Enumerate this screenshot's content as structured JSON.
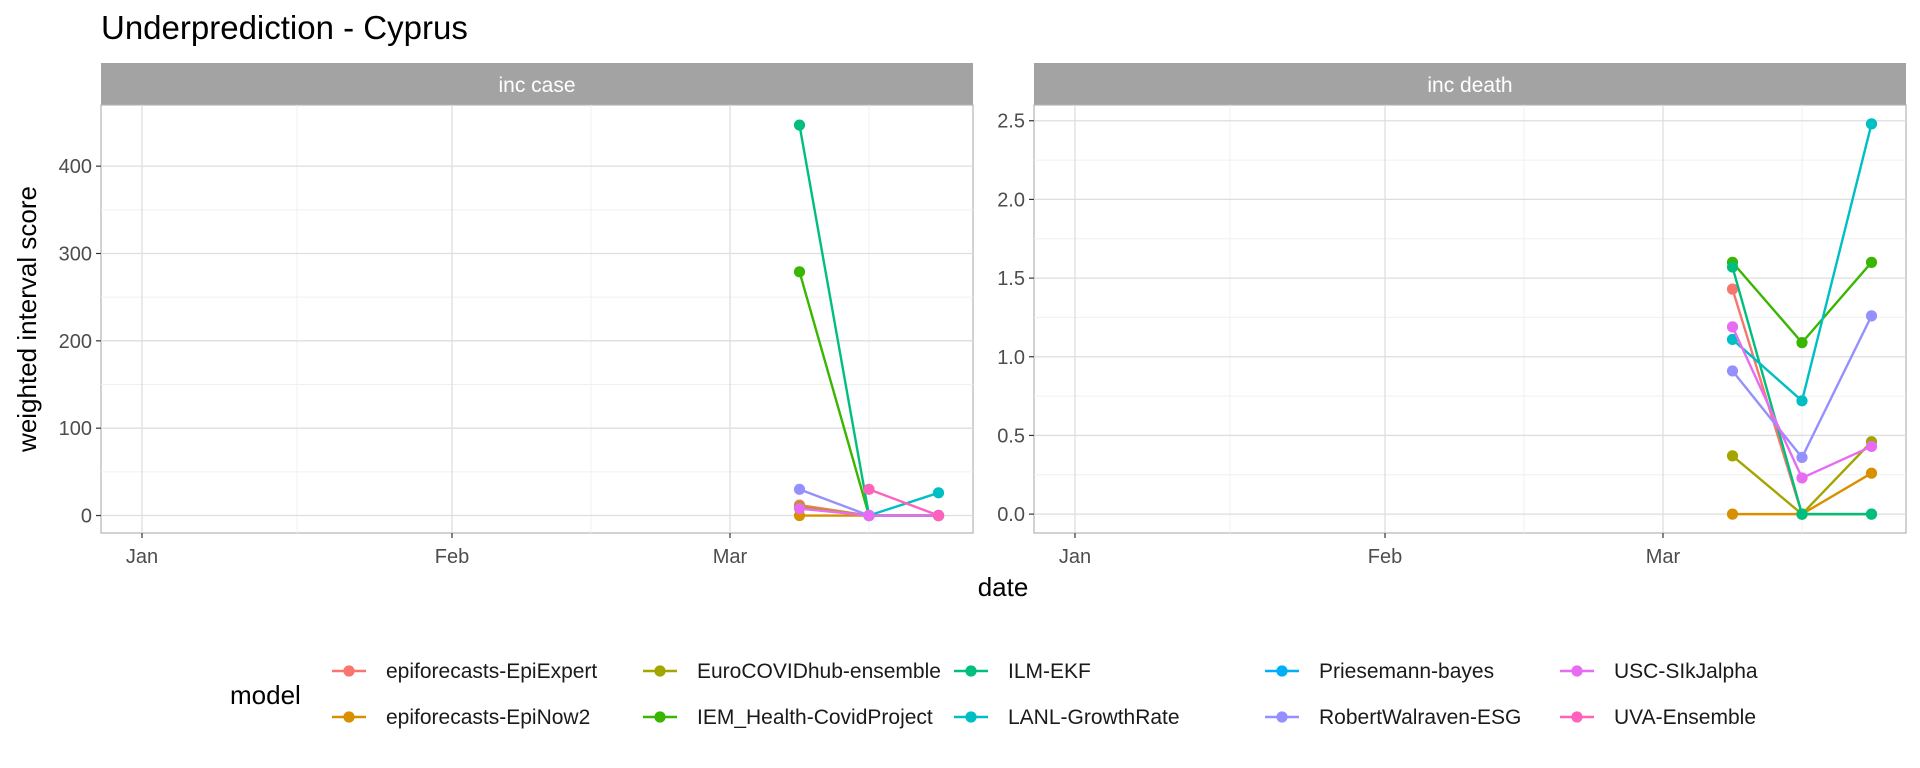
{
  "chart_data": {
    "type": "line",
    "title": "Underprediction - Cyprus",
    "xlabel": "date",
    "ylabel": "weighted interval score",
    "legend": {
      "title": "model",
      "position": "bottom",
      "entries": [
        {
          "name": "epiforecasts-EpiExpert",
          "color": "#F8766D"
        },
        {
          "name": "epiforecasts-EpiNow2",
          "color": "#D89000"
        },
        {
          "name": "EuroCOVIDhub-ensemble",
          "color": "#A3A500"
        },
        {
          "name": "IEM_Health-CovidProject",
          "color": "#39B600"
        },
        {
          "name": "ILM-EKF",
          "color": "#00BF7D"
        },
        {
          "name": "LANL-GrowthRate",
          "color": "#00BFC4"
        },
        {
          "name": "Priesemann-bayes",
          "color": "#00B0F6"
        },
        {
          "name": "RobertWalraven-ESG",
          "color": "#9590FF"
        },
        {
          "name": "USC-SIkJalpha",
          "color": "#E76BF3"
        },
        {
          "name": "UVA-Ensemble",
          "color": "#FF62BC"
        }
      ]
    },
    "x_ticks": [
      "Jan",
      "Feb",
      "Mar"
    ],
    "x_dates": [
      "2021-03-08",
      "2021-03-15",
      "2021-03-22"
    ],
    "grid": true,
    "panels": [
      {
        "facet": "inc case",
        "ylim": [
          -20,
          470
        ],
        "y_ticks": [
          0,
          100,
          200,
          300,
          400
        ],
        "series": [
          {
            "name": "epiforecasts-EpiExpert",
            "values": [
              12,
              0,
              0
            ]
          },
          {
            "name": "epiforecasts-EpiNow2",
            "values": [
              0,
              0,
              0
            ]
          },
          {
            "name": "EuroCOVIDhub-ensemble",
            "values": [
              10,
              0,
              0
            ]
          },
          {
            "name": "IEM_Health-CovidProject",
            "values": [
              279,
              0,
              0
            ]
          },
          {
            "name": "ILM-EKF",
            "values": [
              447,
              0,
              0
            ]
          },
          {
            "name": "LANL-GrowthRate",
            "values": [
              null,
              0,
              26
            ]
          },
          {
            "name": "RobertWalraven-ESG",
            "values": [
              30,
              0,
              0
            ]
          },
          {
            "name": "USC-SIkJalpha",
            "values": [
              8,
              0,
              0
            ]
          },
          {
            "name": "UVA-Ensemble",
            "values": [
              null,
              30,
              0
            ]
          }
        ]
      },
      {
        "facet": "inc death",
        "ylim": [
          -0.12,
          2.6
        ],
        "y_ticks": [
          0.0,
          0.5,
          1.0,
          1.5,
          2.0,
          2.5
        ],
        "y_tick_labels": [
          "0.0",
          "0.5",
          "1.0",
          "1.5",
          "2.0",
          "2.5"
        ],
        "series": [
          {
            "name": "epiforecasts-EpiExpert",
            "values": [
              1.43,
              0.0,
              0.0
            ]
          },
          {
            "name": "epiforecasts-EpiNow2",
            "values": [
              0.0,
              0.0,
              0.26
            ]
          },
          {
            "name": "EuroCOVIDhub-ensemble",
            "values": [
              0.37,
              0.0,
              0.46
            ]
          },
          {
            "name": "IEM_Health-CovidProject",
            "values": [
              1.6,
              1.09,
              1.6
            ]
          },
          {
            "name": "ILM-EKF",
            "values": [
              1.57,
              0.0,
              0.0
            ]
          },
          {
            "name": "LANL-GrowthRate",
            "values": [
              1.11,
              0.72,
              2.48
            ]
          },
          {
            "name": "RobertWalraven-ESG",
            "values": [
              0.91,
              0.36,
              1.26
            ]
          },
          {
            "name": "USC-SIkJalpha",
            "values": [
              1.19,
              0.23,
              0.43
            ]
          }
        ]
      }
    ]
  }
}
